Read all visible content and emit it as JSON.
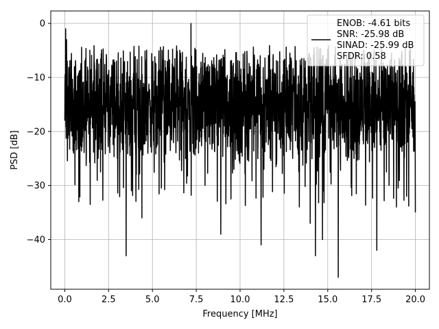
{
  "chart_data": {
    "type": "line",
    "title": "",
    "xlabel": "Frequency [MHz]",
    "ylabel": "PSD [dB]",
    "xlim": [
      -0.8,
      20.8
    ],
    "ylim": [
      -49.2,
      2.3
    ],
    "xticks": [
      0.0,
      2.5,
      5.0,
      7.5,
      10.0,
      12.5,
      15.0,
      17.5,
      20.0
    ],
    "xtick_labels": [
      "0.0",
      "2.5",
      "5.0",
      "7.5",
      "10.0",
      "12.5",
      "15.0",
      "17.5",
      "20.0"
    ],
    "yticks": [
      0,
      -10,
      -20,
      -30,
      -40
    ],
    "ytick_labels": [
      "0",
      "−10",
      "−20",
      "−30",
      "−40"
    ],
    "grid": true,
    "legend_position": "top-right",
    "series": [
      {
        "name": "",
        "color": "#000000",
        "description_points": {
          "x": [
            0.0,
            0.05,
            0.1,
            0.3,
            0.5,
            0.8,
            1.2,
            2.0,
            3.0,
            3.5,
            4.0,
            4.4,
            5.0,
            6.0,
            7.2,
            8.0,
            8.9,
            9.5,
            10.0,
            11.2,
            12.0,
            13.0,
            14.0,
            14.3,
            14.7,
            15.6,
            16.5,
            17.8,
            18.5,
            19.5,
            20.0
          ],
          "y": [
            -18,
            -1,
            -3,
            -15,
            -24,
            -33,
            -18,
            -14,
            -25,
            -43,
            -22,
            -36,
            -13,
            -18,
            0,
            -30,
            -39,
            -15,
            -22,
            -41,
            -18,
            -25,
            -37,
            -43,
            -40,
            -47,
            -25,
            -42,
            -30,
            -32,
            -35
          ]
        }
      }
    ],
    "legend": {
      "lines": [
        "ENOB: -4.61 bits",
        "SNR: -25.98 dB",
        "SINAD: -25.99 dB",
        "SFDR: 0.58"
      ]
    }
  }
}
